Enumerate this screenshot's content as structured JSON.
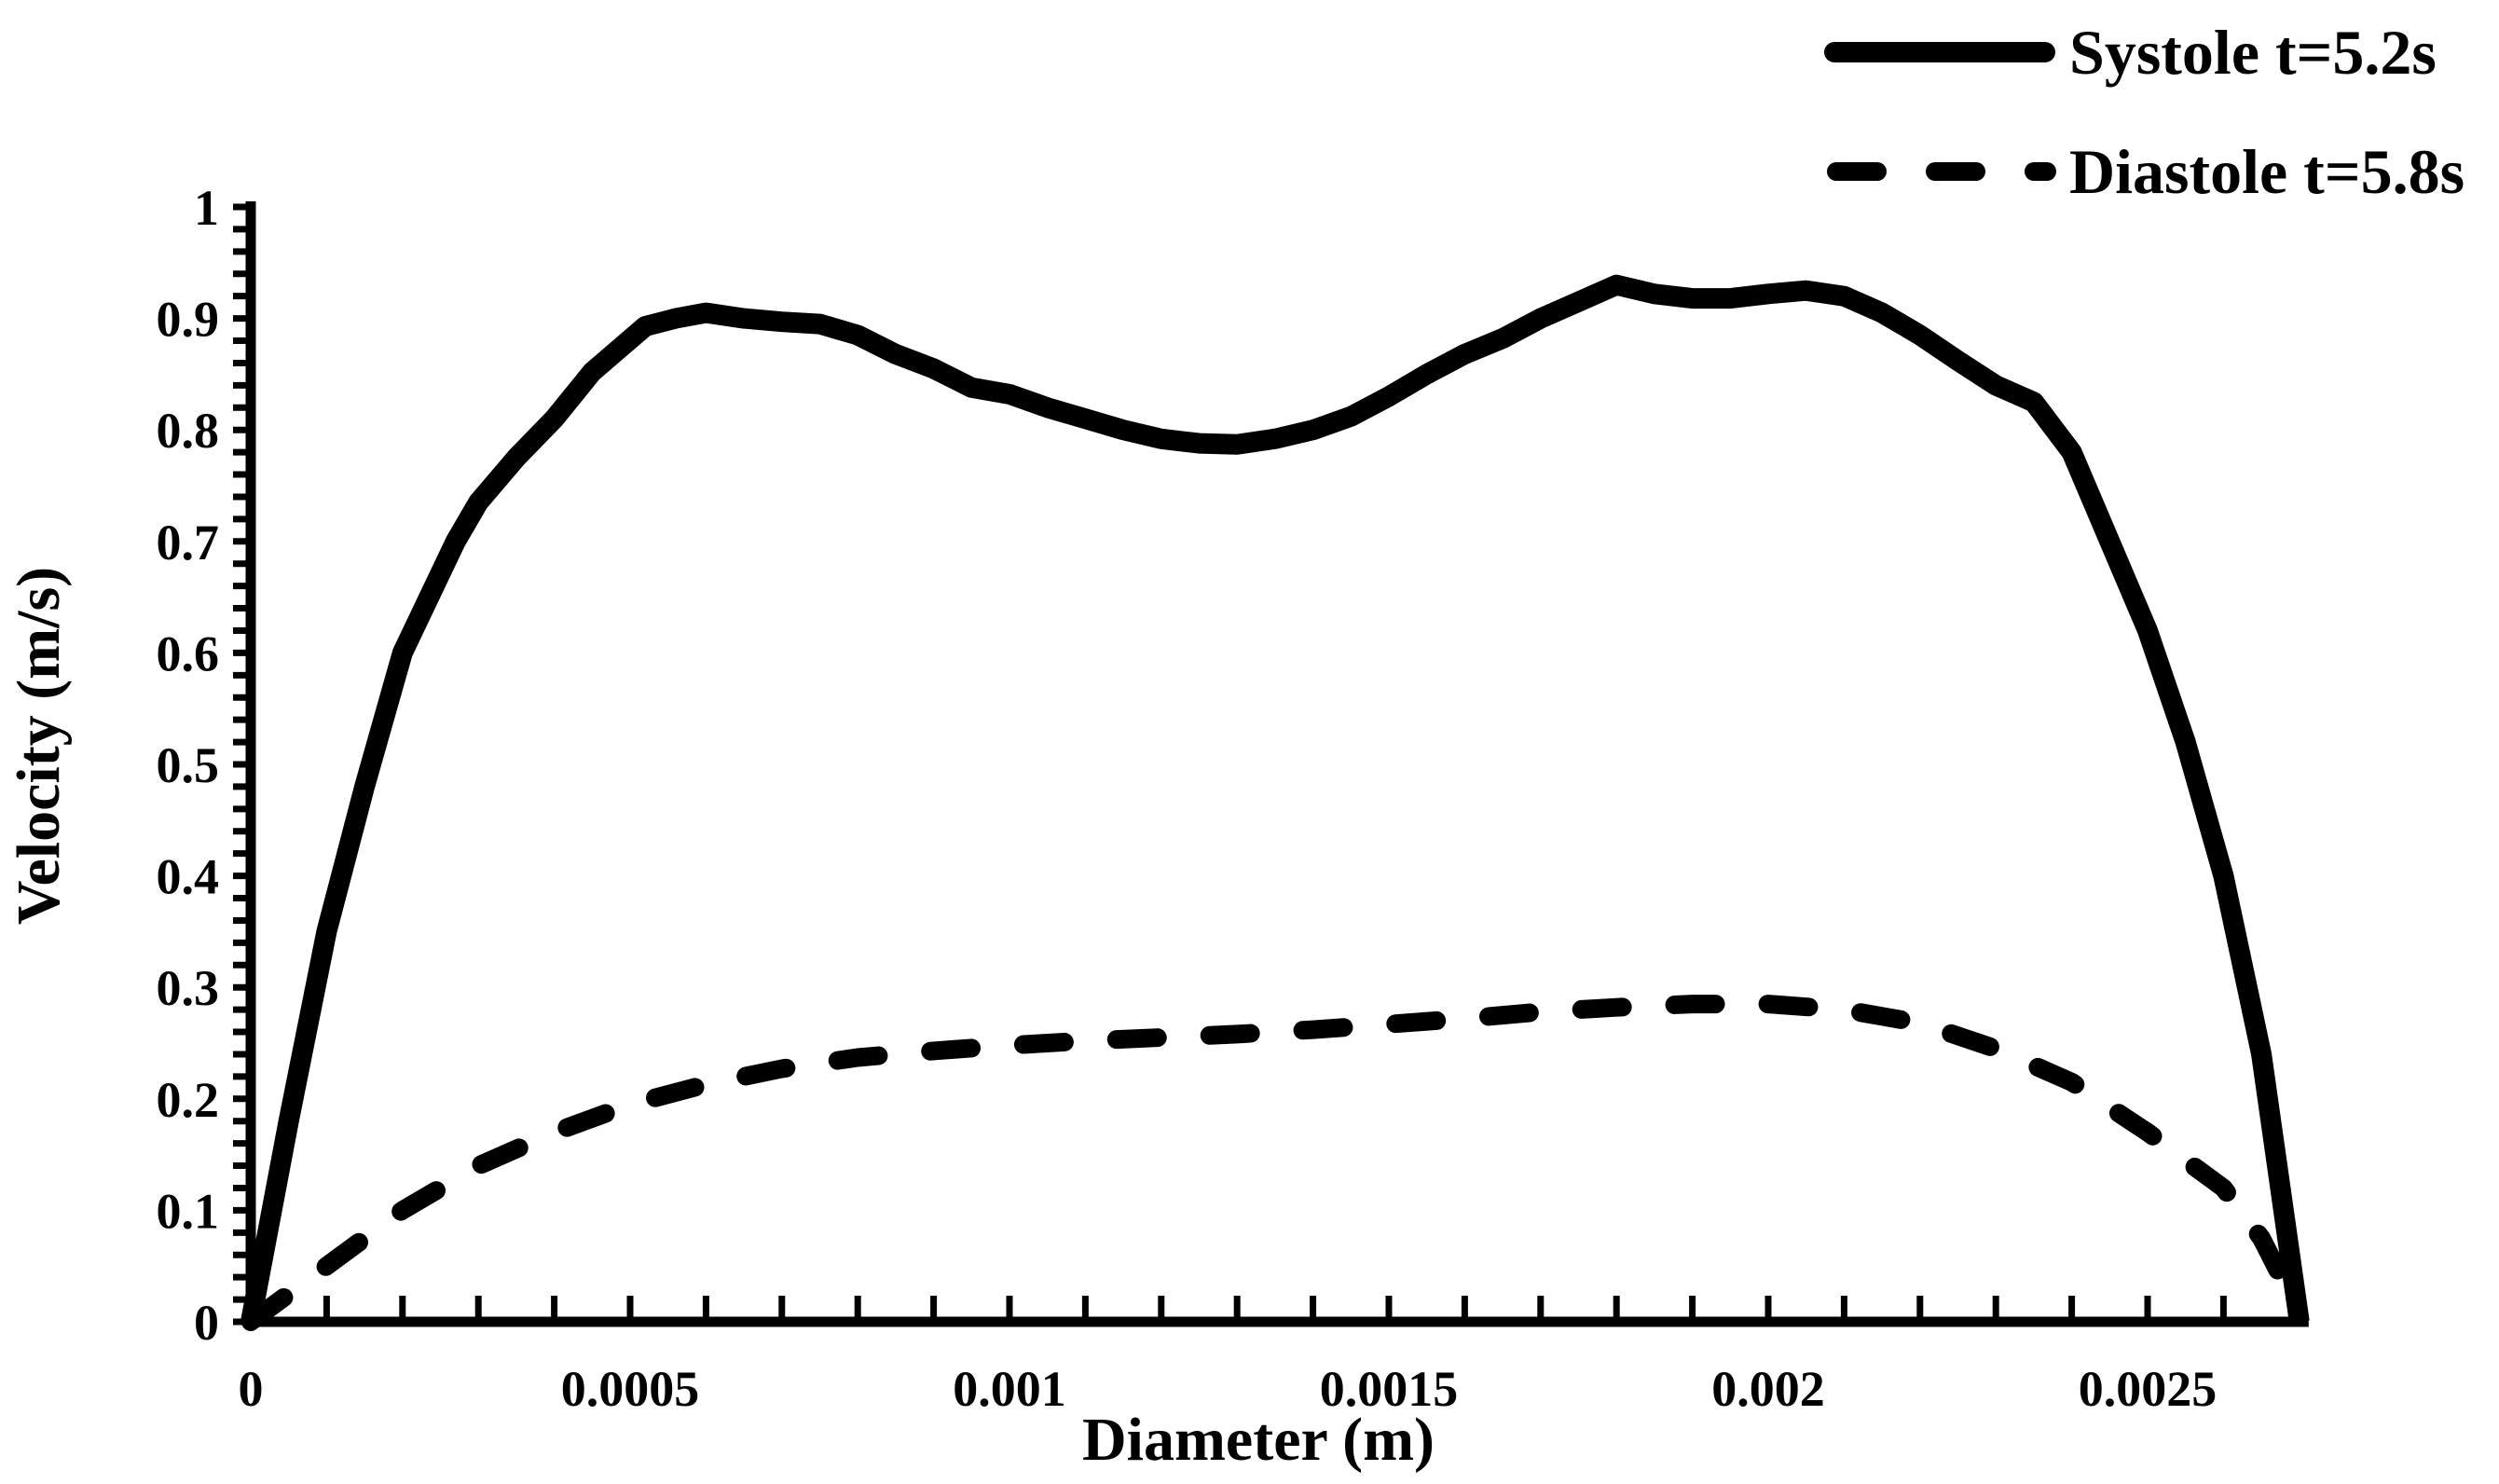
{
  "figure": {
    "background": "#ffffff",
    "ink_color": "#000000"
  },
  "legend": {
    "position": "top-right",
    "items": [
      {
        "label": "Systole t=5.2s",
        "line_style": "solid"
      },
      {
        "label": "Diastole t=5.8s",
        "line_style": "dashed"
      }
    ]
  },
  "chart_data": {
    "type": "line",
    "title": "",
    "xlabel": "Diameter (m)",
    "ylabel": "Velocity (m/s)",
    "xlim": [
      0,
      0.0027
    ],
    "ylim": [
      0,
      1
    ],
    "grid": false,
    "legend_position": "top-right",
    "x_major_ticks": [
      0,
      0.0005,
      0.001,
      0.0015,
      0.002,
      0.0025
    ],
    "x_tick_labels": [
      "0",
      "0.0005",
      "0.001",
      "0.0015",
      "0.002",
      "0.0025"
    ],
    "x_minor_tick_step": 0.0001,
    "y_major_ticks": [
      0,
      0.1,
      0.2,
      0.3,
      0.4,
      0.5,
      0.6,
      0.7,
      0.8,
      0.9,
      1
    ],
    "y_tick_labels": [
      "0",
      "0.1",
      "0.2",
      "0.3",
      "0.4",
      "0.5",
      "0.6",
      "0.7",
      "0.8",
      "0.9",
      "1"
    ],
    "y_minor_tick_step": 0.02,
    "series": [
      {
        "name": "Systole t=5.2s",
        "style": "solid",
        "color": "#000000",
        "line_width": 22,
        "points": [
          [
            0,
            0
          ],
          [
            5e-05,
            0.18
          ],
          [
            0.0001,
            0.35
          ],
          [
            0.00015,
            0.48
          ],
          [
            0.0002,
            0.6
          ],
          [
            0.00027,
            0.7
          ],
          [
            0.0003,
            0.735
          ],
          [
            0.00035,
            0.775
          ],
          [
            0.0004,
            0.81
          ],
          [
            0.00045,
            0.852
          ],
          [
            0.00052,
            0.893
          ],
          [
            0.00056,
            0.9
          ],
          [
            0.0006,
            0.905
          ],
          [
            0.00065,
            0.9
          ],
          [
            0.0007,
            0.897
          ],
          [
            0.00075,
            0.895
          ],
          [
            0.0008,
            0.885
          ],
          [
            0.00085,
            0.868
          ],
          [
            0.0009,
            0.855
          ],
          [
            0.00095,
            0.838
          ],
          [
            0.001,
            0.832
          ],
          [
            0.00105,
            0.82
          ],
          [
            0.0011,
            0.81
          ],
          [
            0.00115,
            0.8
          ],
          [
            0.0012,
            0.792
          ],
          [
            0.00125,
            0.788
          ],
          [
            0.0013,
            0.787
          ],
          [
            0.00135,
            0.792
          ],
          [
            0.0014,
            0.8
          ],
          [
            0.00145,
            0.812
          ],
          [
            0.0015,
            0.83
          ],
          [
            0.00155,
            0.85
          ],
          [
            0.0016,
            0.868
          ],
          [
            0.00165,
            0.882
          ],
          [
            0.0017,
            0.9
          ],
          [
            0.00175,
            0.915
          ],
          [
            0.0018,
            0.93
          ],
          [
            0.00185,
            0.922
          ],
          [
            0.0019,
            0.918
          ],
          [
            0.00195,
            0.918
          ],
          [
            0.002,
            0.922
          ],
          [
            0.00205,
            0.925
          ],
          [
            0.0021,
            0.92
          ],
          [
            0.00215,
            0.905
          ],
          [
            0.0022,
            0.885
          ],
          [
            0.00225,
            0.862
          ],
          [
            0.0023,
            0.84
          ],
          [
            0.00235,
            0.825
          ],
          [
            0.0024,
            0.78
          ],
          [
            0.00245,
            0.7
          ],
          [
            0.0025,
            0.62
          ],
          [
            0.00255,
            0.52
          ],
          [
            0.0026,
            0.4
          ],
          [
            0.00265,
            0.24
          ],
          [
            0.0027,
            0
          ]
        ]
      },
      {
        "name": "Diastole t=5.8s",
        "style": "dashed",
        "color": "#000000",
        "line_width": 20,
        "points": [
          [
            0,
            0
          ],
          [
            0.0001,
            0.05
          ],
          [
            0.0002,
            0.1
          ],
          [
            0.0003,
            0.14
          ],
          [
            0.0004,
            0.17
          ],
          [
            0.0005,
            0.195
          ],
          [
            0.0006,
            0.213
          ],
          [
            0.0007,
            0.227
          ],
          [
            0.0008,
            0.237
          ],
          [
            0.0009,
            0.243
          ],
          [
            0.001,
            0.248
          ],
          [
            0.0011,
            0.252
          ],
          [
            0.0012,
            0.255
          ],
          [
            0.0013,
            0.258
          ],
          [
            0.0014,
            0.262
          ],
          [
            0.0015,
            0.267
          ],
          [
            0.0016,
            0.272
          ],
          [
            0.0017,
            0.278
          ],
          [
            0.0018,
            0.282
          ],
          [
            0.0019,
            0.285
          ],
          [
            0.002,
            0.285
          ],
          [
            0.0021,
            0.28
          ],
          [
            0.0022,
            0.268
          ],
          [
            0.0023,
            0.245
          ],
          [
            0.0024,
            0.215
          ],
          [
            0.0025,
            0.17
          ],
          [
            0.0026,
            0.12
          ],
          [
            0.00265,
            0.075
          ],
          [
            0.0027,
            0.008
          ]
        ]
      }
    ]
  }
}
